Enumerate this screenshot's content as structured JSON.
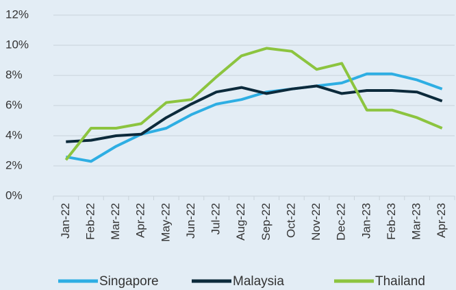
{
  "chart_data": {
    "type": "line",
    "categories": [
      "Jan-22",
      "Feb-22",
      "Mar-22",
      "Apr-22",
      "May-22",
      "Jun-22",
      "Jul-22",
      "Aug-22",
      "Sep-22",
      "Oct-22",
      "Nov-22",
      "Dec-22",
      "Jan-23",
      "Feb-23",
      "Mar-23",
      "Apr-23"
    ],
    "series": [
      {
        "name": "Singapore",
        "color": "#2eaee3",
        "values": [
          2.6,
          2.3,
          3.3,
          4.1,
          4.5,
          5.4,
          6.1,
          6.4,
          6.9,
          7.1,
          7.3,
          7.5,
          8.1,
          8.1,
          7.7,
          7.1
        ]
      },
      {
        "name": "Malaysia",
        "color": "#0c2a3b",
        "values": [
          3.6,
          3.7,
          4.0,
          4.1,
          5.2,
          6.1,
          6.9,
          7.2,
          6.8,
          7.1,
          7.3,
          6.8,
          7.0,
          7.0,
          6.9,
          6.3
        ]
      },
      {
        "name": "Thailand",
        "color": "#8cc43f",
        "values": [
          2.4,
          4.5,
          4.5,
          4.8,
          6.2,
          6.4,
          7.9,
          9.3,
          9.8,
          9.6,
          8.4,
          8.8,
          5.7,
          5.7,
          5.2,
          4.5
        ]
      }
    ],
    "ylim": [
      0,
      12
    ],
    "yticks": [
      {
        "value": 0,
        "label": "0%"
      },
      {
        "value": 2,
        "label": "2%"
      },
      {
        "value": 4,
        "label": "4%"
      },
      {
        "value": 6,
        "label": "6%"
      },
      {
        "value": 8,
        "label": "8%"
      },
      {
        "value": 10,
        "label": "10%"
      },
      {
        "value": 12,
        "label": "12%"
      }
    ],
    "grid": true,
    "legend": "bottom"
  }
}
